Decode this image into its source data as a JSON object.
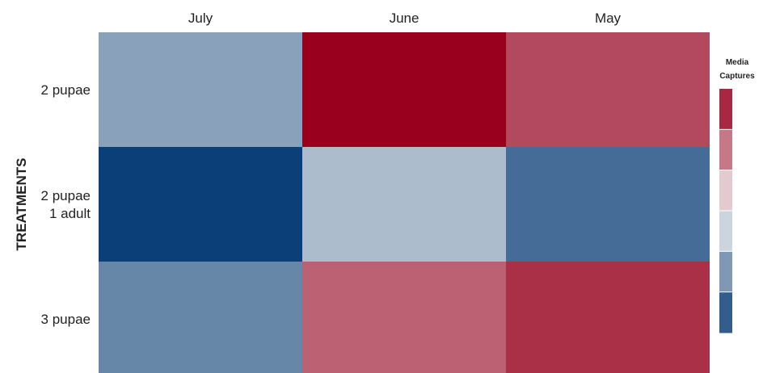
{
  "chart_data": {
    "type": "heatmap",
    "title": "",
    "ylabel": "TREATMENTS",
    "xlabel": "",
    "columns": [
      "July",
      "June",
      "May"
    ],
    "rows": [
      [
        "2 pupae"
      ],
      [
        "2 pupae",
        "1 adult"
      ],
      [
        "3 pupae"
      ]
    ],
    "values": [
      [
        -0.45,
        1.0,
        0.7
      ],
      [
        -1.0,
        -0.3,
        -0.75
      ],
      [
        -0.6,
        0.6,
        0.8
      ]
    ],
    "legend": {
      "title": [
        "Media",
        "Captures"
      ],
      "position": "right",
      "low_color": "#0b3f78",
      "mid_color": "#f2f2f2",
      "high_color": "#98001e"
    }
  }
}
